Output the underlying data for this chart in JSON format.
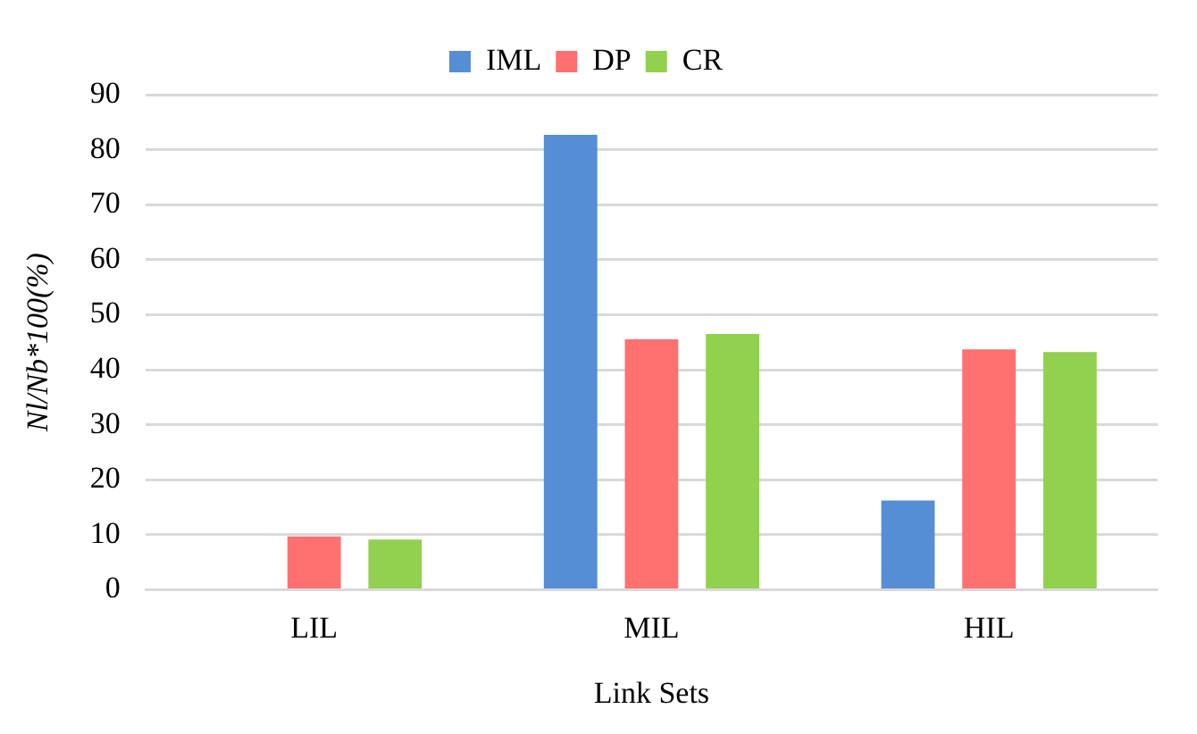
{
  "chart_data": {
    "type": "bar",
    "xlabel": "Link Sets",
    "ylabel": "Nl/Nb*100(%)",
    "categories": [
      "LIL",
      "MIL",
      "HIL"
    ],
    "series": [
      {
        "name": "IML",
        "color": "#558ed5",
        "values": [
          0,
          82.7,
          16.2
        ]
      },
      {
        "name": "DP",
        "color": "#ff7070",
        "values": [
          9.7,
          45.5,
          43.7
        ]
      },
      {
        "name": "CR",
        "color": "#92d050",
        "values": [
          9.1,
          46.5,
          43.2
        ]
      }
    ],
    "ylim": [
      0,
      90
    ],
    "yticks": [
      0,
      10,
      20,
      30,
      40,
      50,
      60,
      70,
      80,
      90
    ],
    "grid": "y",
    "legend": "top"
  }
}
